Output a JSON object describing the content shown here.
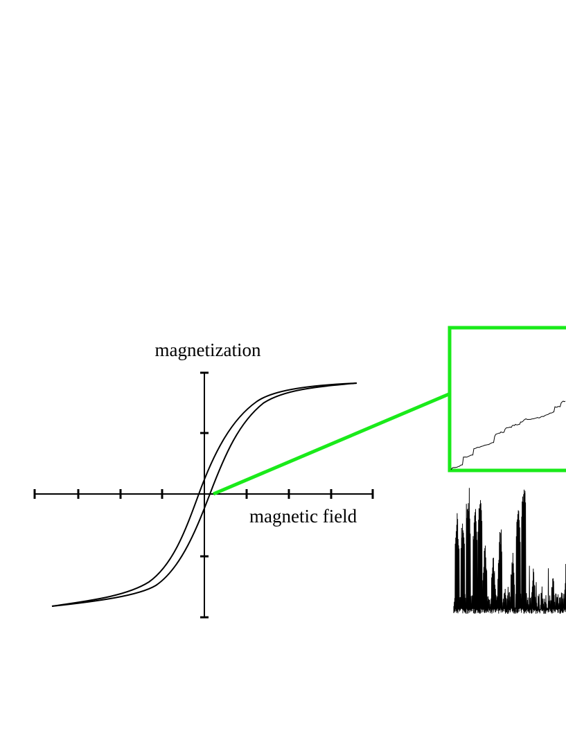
{
  "axes": {
    "y_label": "magnetization",
    "x_label": "magnetic field"
  }
}
